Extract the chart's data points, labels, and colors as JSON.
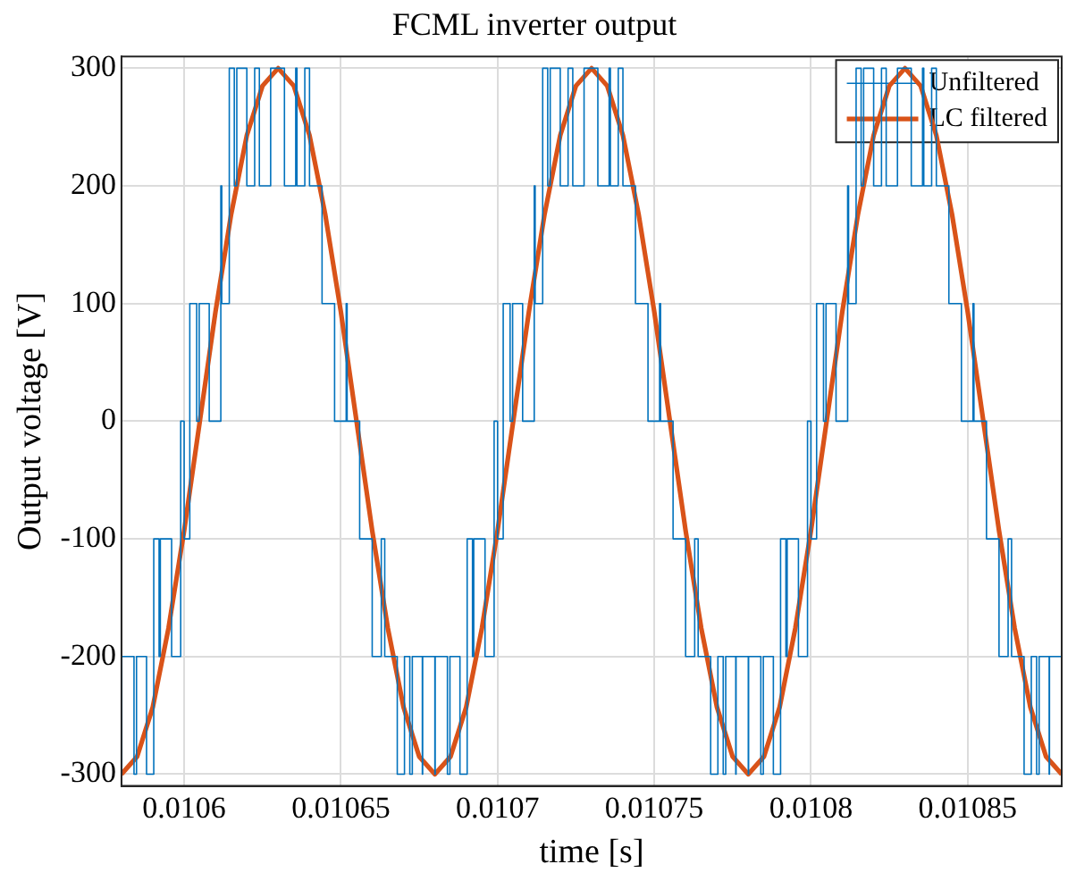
{
  "chart_data": {
    "type": "line",
    "title": "FCML inverter output",
    "xlabel": "time [s]",
    "ylabel": "Output voltage [V]",
    "xlim": [
      0.01058,
      0.01088
    ],
    "xticks": [
      0.0106,
      0.01065,
      0.0107,
      0.01075,
      0.0108,
      0.01085
    ],
    "ylim": [
      -310,
      310
    ],
    "yticks": [
      -300,
      -200,
      -100,
      0,
      100,
      200,
      300
    ],
    "grid": true,
    "legend": "top right",
    "marker": "none",
    "line_style": "solid",
    "series": [
      {
        "name": "Unfiltered",
        "type": "step",
        "color": "#0072bd",
        "x": [
          0.01058,
          0.0105801,
          0.010584,
          0.0105848,
          0.010588,
          0.0105903,
          0.010592,
          0.0105924,
          0.010596,
          0.0105989,
          0.0106,
          0.0106018,
          0.010604,
          0.0106048,
          0.010608,
          0.0106117,
          0.010612,
          0.0106144,
          0.010616,
          0.0106168,
          0.01062,
          0.0106225,
          0.010624,
          0.0106276,
          0.010628,
          0.010632,
          0.0106356,
          0.010636,
          0.0106385,
          0.01064,
          0.0106408,
          0.010644,
          0.0106464,
          0.010648,
          0.0106517,
          0.010652,
          0.0106528,
          0.010656,
          0.0106578,
          0.01066,
          0.0106629,
          0.010664,
          0.0106644,
          0.010668,
          0.0106703,
          0.010672,
          0.0106728,
          0.010676,
          0.0106761,
          0.01068,
          0.0106801,
          0.010684,
          0.0106848,
          0.010688,
          0.0106903,
          0.010692,
          0.0106924,
          0.010696,
          0.0106989,
          0.0107,
          0.0107018,
          0.010704,
          0.0107048,
          0.010708,
          0.0107117,
          0.010712,
          0.0107144,
          0.010716,
          0.0107168,
          0.01072,
          0.0107225,
          0.010724,
          0.0107276,
          0.010728,
          0.010732,
          0.0107356,
          0.010736,
          0.0107385,
          0.01074,
          0.0107408,
          0.010744,
          0.0107464,
          0.010748,
          0.0107517,
          0.010752,
          0.0107528,
          0.010756,
          0.0107578,
          0.01076,
          0.0107629,
          0.010764,
          0.0107644,
          0.010768,
          0.0107703,
          0.010772,
          0.0107728,
          0.010776,
          0.0107761,
          0.01078,
          0.0107801,
          0.010784,
          0.0107848,
          0.010788,
          0.0107903,
          0.010792,
          0.0107924,
          0.010796,
          0.0107989,
          0.0108,
          0.0108018,
          0.010804,
          0.0108048,
          0.010808,
          0.0108117,
          0.010812,
          0.0108144,
          0.010816,
          0.0108168,
          0.01082,
          0.0108225,
          0.010824,
          0.0108276,
          0.010828,
          0.010832,
          0.0108356,
          0.010836,
          0.0108385,
          0.01084,
          0.0108408,
          0.010844,
          0.0108464,
          0.010848,
          0.0108517,
          0.010852,
          0.0108528,
          0.010856,
          0.0108578,
          0.01086,
          0.0108629,
          0.010864,
          0.0108644,
          0.010868,
          0.0108703,
          0.010872,
          0.0108728,
          0.010876,
          0.0108761,
          0.01088
        ],
        "values": [
          -200,
          -300,
          -200,
          -300,
          -200,
          -300,
          -100,
          -200,
          -100,
          -200,
          0,
          -100,
          100,
          0,
          100,
          0,
          200,
          100,
          300,
          200,
          300,
          200,
          300,
          200,
          300,
          300,
          200,
          300,
          200,
          300,
          200,
          200,
          100,
          100,
          0,
          100,
          0,
          0,
          -100,
          -100,
          -200,
          -100,
          -200,
          -200,
          -300,
          -200,
          -300,
          -200,
          -300,
          -200,
          -300,
          -200,
          -300,
          -200,
          -300,
          -100,
          -200,
          -100,
          -200,
          0,
          -100,
          100,
          0,
          100,
          0,
          200,
          100,
          300,
          200,
          300,
          200,
          300,
          200,
          300,
          300,
          200,
          300,
          200,
          300,
          200,
          200,
          100,
          100,
          0,
          100,
          0,
          0,
          -100,
          -100,
          -200,
          -100,
          -200,
          -200,
          -300,
          -200,
          -300,
          -200,
          -300,
          -200,
          -300,
          -200,
          -300,
          -200,
          -300,
          -100,
          -200,
          -100,
          -200,
          0,
          -100,
          100,
          0,
          100,
          0,
          200,
          100,
          300,
          200,
          300,
          200,
          300,
          200,
          300,
          300,
          200,
          300,
          200,
          300,
          200,
          200,
          100,
          100,
          0,
          100,
          0,
          0,
          -100,
          -100,
          -200,
          -100,
          -200,
          -200,
          -300,
          -200,
          -300,
          -200,
          -300,
          -200
        ]
      },
      {
        "name": "LC filtered",
        "type": "line",
        "color": "#d95319",
        "x": [
          0.01058,
          0.010585,
          0.01059,
          0.010595,
          0.0106,
          0.010605,
          0.01061,
          0.010615,
          0.01062,
          0.010625,
          0.01063,
          0.010635,
          0.01064,
          0.010645,
          0.01065,
          0.010655,
          0.01066,
          0.010665,
          0.01067,
          0.010675,
          0.01068,
          0.010685,
          0.01069,
          0.010695,
          0.0107,
          0.010705,
          0.01071,
          0.010715,
          0.01072,
          0.010725,
          0.01073,
          0.010735,
          0.01074,
          0.010745,
          0.01075,
          0.010755,
          0.01076,
          0.010765,
          0.01077,
          0.010775,
          0.01078,
          0.010785,
          0.01079,
          0.010795,
          0.0108,
          0.010805,
          0.01081,
          0.010815,
          0.01082,
          0.010825,
          0.01083,
          0.010835,
          0.01084,
          0.010845,
          0.01085,
          0.010855,
          0.01086,
          0.010865,
          0.01087,
          0.010875,
          0.01088
        ],
        "values": [
          -300,
          -285,
          -243,
          -176,
          -93,
          0,
          93,
          176,
          243,
          285,
          300,
          285,
          243,
          176,
          93,
          0,
          -93,
          -176,
          -243,
          -285,
          -300,
          -285,
          -243,
          -176,
          -93,
          0,
          93,
          176,
          243,
          285,
          300,
          285,
          243,
          176,
          93,
          0,
          -93,
          -176,
          -243,
          -285,
          -300,
          -285,
          -243,
          -176,
          -93,
          0,
          93,
          176,
          243,
          285,
          300,
          285,
          243,
          176,
          93,
          0,
          -93,
          -176,
          -243,
          -285,
          -300
        ]
      }
    ]
  }
}
